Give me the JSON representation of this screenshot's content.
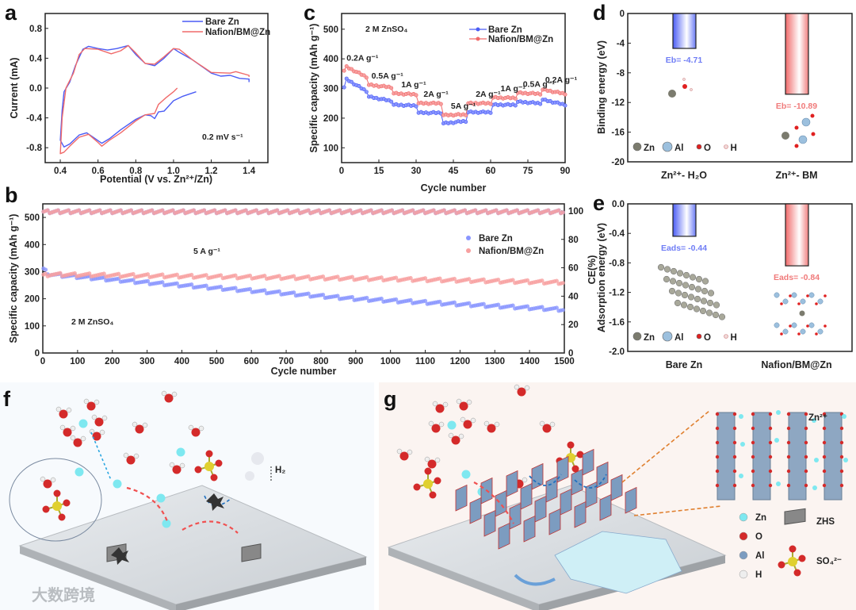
{
  "panel_labels": {
    "a": "a",
    "b": "b",
    "c": "c",
    "d": "d",
    "e": "e",
    "f": "f",
    "g": "g"
  },
  "colors": {
    "bare": "#4a5cf5",
    "nafion": "#f06a6a",
    "bare_light": "#7d8cff",
    "nafion_light": "#f7a0a0"
  },
  "chart_data": [
    {
      "id": "a",
      "type": "line",
      "xlabel": "Potential (V vs. Zn²⁺/Zn)",
      "ylabel": "Current  (mA)",
      "xlim": [
        0.32,
        1.5
      ],
      "ylim": [
        -1.0,
        1.0
      ],
      "xticks": [
        0.4,
        0.6,
        0.8,
        1.0,
        1.2,
        1.4
      ],
      "yticks": [
        -0.8,
        -0.4,
        0.0,
        0.4,
        0.8
      ],
      "annotation": "0.2 mV s⁻¹",
      "series": [
        {
          "name": "Bare Zn",
          "color": "#4a5cf5",
          "x": [
            1.12,
            1.05,
            1.0,
            0.95,
            0.92,
            0.9,
            0.88,
            0.85,
            0.8,
            0.72,
            0.66,
            0.62,
            0.58,
            0.54,
            0.5,
            0.45,
            0.42,
            0.4,
            0.41,
            0.42,
            0.45,
            0.48,
            0.52,
            0.55,
            0.6,
            0.65,
            0.7,
            0.76,
            0.8,
            0.85,
            0.9,
            0.95,
            1.0,
            1.03,
            1.1,
            1.2,
            1.25,
            1.3,
            1.35,
            1.4,
            1.4
          ],
          "y": [
            -0.05,
            -0.11,
            -0.17,
            -0.31,
            -0.32,
            -0.41,
            -0.37,
            -0.36,
            -0.42,
            -0.56,
            -0.68,
            -0.74,
            -0.67,
            -0.6,
            -0.63,
            -0.75,
            -0.79,
            -0.7,
            -0.3,
            -0.05,
            0.08,
            0.3,
            0.52,
            0.56,
            0.53,
            0.51,
            0.53,
            0.57,
            0.45,
            0.33,
            0.3,
            0.4,
            0.53,
            0.48,
            0.38,
            0.2,
            0.16,
            0.17,
            0.13,
            0.12,
            0.08
          ]
        },
        {
          "name": "Nafion/BM@Zn",
          "color": "#f06a6a",
          "x": [
            1.02,
            1.0,
            0.96,
            0.92,
            0.9,
            0.85,
            0.8,
            0.72,
            0.66,
            0.62,
            0.6,
            0.55,
            0.5,
            0.45,
            0.42,
            0.4,
            0.41,
            0.43,
            0.47,
            0.5,
            0.53,
            0.6,
            0.67,
            0.72,
            0.76,
            0.8,
            0.85,
            0.9,
            0.95,
            1.0,
            1.03,
            1.1,
            1.2,
            1.3,
            1.33,
            1.4,
            1.4
          ],
          "y": [
            0.0,
            -0.05,
            -0.13,
            -0.22,
            -0.34,
            -0.36,
            -0.44,
            -0.6,
            -0.7,
            -0.78,
            -0.73,
            -0.62,
            -0.66,
            -0.78,
            -0.86,
            -0.88,
            -0.4,
            0.0,
            0.2,
            0.45,
            0.53,
            0.52,
            0.46,
            0.5,
            0.57,
            0.47,
            0.33,
            0.32,
            0.42,
            0.53,
            0.52,
            0.38,
            0.21,
            0.2,
            0.22,
            0.17,
            0.15
          ]
        }
      ]
    },
    {
      "id": "b",
      "type": "scatter",
      "xlabel": "Cycle number",
      "ylabel": "Specific capacity (mAh g⁻¹)",
      "y2label": "CE(%)",
      "xlim": [
        0,
        1500
      ],
      "ylim": [
        0,
        550
      ],
      "y2lim": [
        0,
        105
      ],
      "xticks": [
        0,
        100,
        200,
        300,
        400,
        500,
        600,
        700,
        800,
        900,
        1000,
        1100,
        1200,
        1300,
        1400,
        1500
      ],
      "yticks": [
        0,
        100,
        200,
        300,
        400,
        500
      ],
      "y2ticks": [
        0,
        20,
        40,
        60,
        80,
        100
      ],
      "annotations": {
        "current": "5 A g⁻¹",
        "electrolyte": "2 M ZnSO₄"
      },
      "series": [
        {
          "name": "Bare Zn",
          "color": "#4a5cf5",
          "capacity_x": [
            0,
            20,
            300,
            600,
            900,
            1200,
            1500
          ],
          "capacity_y": [
            310,
            290,
            260,
            230,
            200,
            180,
            160
          ],
          "ce": 99.5
        },
        {
          "name": "Nafion/BM@Zn",
          "color": "#f06a6a",
          "capacity_x": [
            0,
            20,
            300,
            600,
            900,
            1200,
            1500
          ],
          "capacity_y": [
            285,
            290,
            285,
            280,
            275,
            268,
            260
          ],
          "ce": 99.5
        }
      ]
    },
    {
      "id": "c",
      "type": "line",
      "xlabel": "Cycle number",
      "ylabel": "Specific capacity (mAh g⁻¹)",
      "xlim": [
        0,
        90
      ],
      "ylim": [
        50,
        553
      ],
      "xticks": [
        0,
        15,
        30,
        45,
        60,
        75,
        90
      ],
      "yticks": [
        100,
        200,
        300,
        400,
        500
      ],
      "annotation": "2 M ZnSO₄",
      "rates": [
        "0.2A g⁻¹",
        "0.5A g⁻¹",
        "1A g⁻¹",
        "2A g⁻¹",
        "5A g⁻¹",
        "2A g⁻¹",
        "1A g⁻¹",
        "0.5A g⁻¹",
        "0.2A g⁻¹"
      ],
      "series": [
        {
          "name": "Bare Zn",
          "color": "#4a5cf5",
          "segments": [
            [
              336,
              291
            ],
            [
              272,
              258
            ],
            [
              245,
              242
            ],
            [
              218,
              218
            ],
            [
              182,
              190
            ],
            [
              220,
              220
            ],
            [
              245,
              245
            ],
            [
              255,
              250
            ],
            [
              262,
              245
            ]
          ]
        },
        {
          "name": "Nafion/BM@Zn",
          "color": "#f06a6a",
          "segments": [
            [
              377,
              339
            ],
            [
              312,
              304
            ],
            [
              283,
              280
            ],
            [
              250,
              250
            ],
            [
              210,
              212
            ],
            [
              250,
              250
            ],
            [
              269,
              268
            ],
            [
              285,
              282
            ],
            [
              296,
              282
            ]
          ]
        }
      ]
    },
    {
      "id": "d",
      "type": "bar",
      "ylabel": "Binding energy (eV)",
      "ylim": [
        -20,
        0
      ],
      "yticks": [
        0,
        -4,
        -8,
        -12,
        -16,
        -20
      ],
      "categories": [
        "Zn²⁺- H₂O",
        "Zn²⁺- BM"
      ],
      "values": [
        -4.71,
        -10.89
      ],
      "value_labels": [
        "Eb= -4.71",
        "Eb= -10.89"
      ],
      "legend": [
        "Zn",
        "Al",
        "O",
        "H"
      ]
    },
    {
      "id": "e",
      "type": "bar",
      "ylabel": "Adsorption energy (eV)",
      "ylim": [
        -2.0,
        0
      ],
      "yticks": [
        0.0,
        -0.4,
        -0.8,
        -1.2,
        -1.6,
        -2.0
      ],
      "categories": [
        "Bare Zn",
        "Nafion/BM@Zn"
      ],
      "values": [
        -0.44,
        -0.84
      ],
      "value_labels": [
        "Eads= -0.44",
        "Eads= -0.84"
      ],
      "legend": [
        "Zn",
        "Al",
        "O",
        "H"
      ]
    }
  ],
  "illustration_f": {
    "h2_label": "H₂"
  },
  "illustration_g": {
    "zn_label": "Zn²⁺",
    "legend": [
      "Zn",
      "O",
      "Al",
      "H"
    ],
    "zhs_label": "ZHS",
    "so4_label": "SO₄²⁻"
  },
  "watermark": "大数跨境"
}
